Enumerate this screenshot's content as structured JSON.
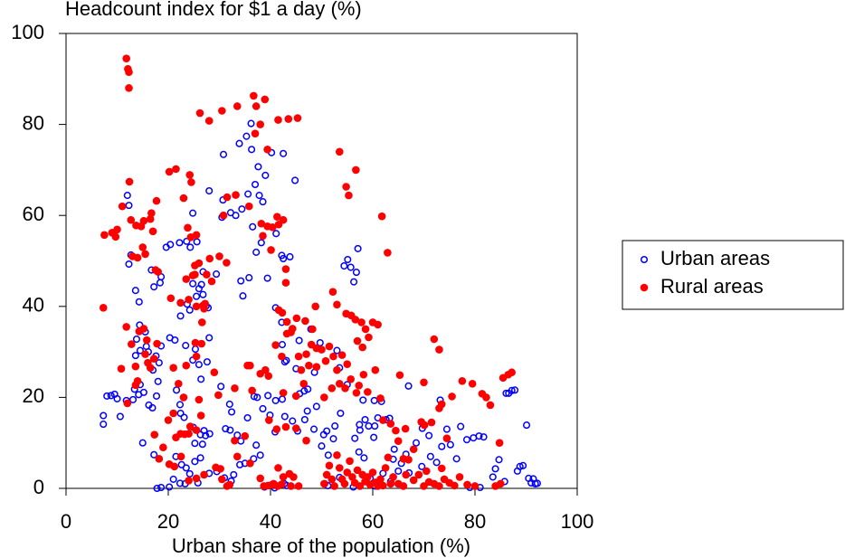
{
  "chart_data": {
    "type": "scatter",
    "ylabel": "Headcount index for $1 a day (%)",
    "xlabel": "Urban share of the population (%)",
    "xlim": [
      0,
      100
    ],
    "xticks": [
      0,
      20,
      40,
      60,
      80,
      100
    ],
    "ylim": [
      0,
      100
    ],
    "yticks": [
      0,
      20,
      40,
      60,
      80,
      100
    ],
    "legend": "right",
    "series": [
      {
        "name": "Urban areas",
        "color": "#0000ff",
        "marker": "open",
        "x": [
          12,
          12.3,
          12.7,
          12.3,
          13.6,
          14.3,
          14.4,
          15.5,
          15.7,
          13.8,
          14.5,
          16.1,
          17.6,
          17,
          18.2,
          18.6,
          17.2,
          18.4,
          18.6,
          16.7,
          13.6,
          7.3,
          7.3,
          8,
          8.8,
          9.5,
          10,
          10.6,
          11.8,
          13.1,
          13.4,
          14.2,
          14.5,
          15.2,
          16.2,
          16.9,
          17.7,
          18,
          15,
          17.2,
          17.8,
          18.6,
          20.2,
          19.6,
          20.4,
          22.2,
          23.6,
          24.8,
          24.3,
          25.6,
          28,
          26,
          26.5,
          26.8,
          25.5,
          24.2,
          23.7,
          24.8,
          26.8,
          29.4,
          27.4,
          27.8,
          27.6,
          20.3,
          21.3,
          22.4,
          23.4,
          25.3,
          28,
          26,
          24.8,
          26.4,
          21.6,
          22.3,
          22.4,
          23.1,
          24.9,
          26.3,
          27,
          27.3,
          28.1,
          26.7,
          25.2,
          26.3,
          25.2,
          23.5,
          22.6,
          21,
          21.5,
          22.3,
          23.3,
          24.2,
          25.8,
          28,
          29.5,
          31,
          32.3,
          32.8,
          34,
          35,
          36.7,
          37.2,
          38,
          38.8,
          40.8,
          42.7,
          43.2,
          30.8,
          33.9,
          35.3,
          36.2,
          37,
          37.6,
          36.3,
          40.2,
          42.5,
          44.8,
          39,
          30.7,
          30.5,
          32.2,
          33.2,
          34.4,
          35.6,
          37.8,
          38.5,
          36.5,
          38.2,
          37.2,
          39.4,
          41.1,
          42.2,
          42.5,
          43.8,
          34.2,
          35.8,
          34.6,
          30.3,
          32,
          32.4,
          31.2,
          32.1,
          33.5,
          34.2,
          35.5,
          36.8,
          37.4,
          38.5,
          39.5,
          39.9,
          40.9,
          41,
          42.3,
          42.8,
          44.3,
          45.3,
          45.7,
          46.6,
          47.2,
          48.5,
          48.6,
          45,
          42.8,
          43.1,
          42.2,
          41,
          42.3,
          45.6,
          47.9,
          49.7,
          47.3,
          46.7,
          49,
          50,
          50.4,
          51,
          52.3,
          51.3,
          50.6,
          51.2,
          52.6,
          53.7,
          53.5,
          55,
          53,
          54.4,
          55.1,
          55.7,
          56.3,
          56.8,
          57.1,
          56.5,
          57.4,
          58.5,
          58.1,
          57.5,
          59.2,
          60.3,
          61,
          61.7,
          62.6,
          63.3,
          64.2,
          60.2,
          57.3,
          58.3,
          59.5,
          60.5,
          62,
          63.5,
          65.6,
          66.5,
          67.1,
          68.5,
          69.7,
          71,
          69.6,
          71.3,
          72.5,
          73.5,
          74.5,
          75.2,
          76.4,
          77.2,
          78.4,
          79.7,
          80.8,
          81.7,
          79,
          81,
          83.5,
          84,
          84.7,
          85.8,
          86.1,
          86.6,
          87.2,
          87.8,
          88.3,
          88.8,
          89.4,
          90.1,
          90.5,
          91,
          91.4,
          91.8,
          92.2,
          67,
          73.2,
          60.4,
          64,
          65,
          56.2,
          53.5
        ],
        "values": [
          64.4,
          62.2,
          51.3,
          49.3,
          43.5,
          41,
          35.9,
          34.4,
          31.2,
          32.8,
          30.3,
          30,
          29.1,
          26,
          27.6,
          31.3,
          44.3,
          45.2,
          46.5,
          48,
          29.2,
          16,
          14.1,
          20.3,
          20.4,
          20.7,
          19.7,
          15.8,
          19.3,
          19.5,
          21.8,
          20.6,
          22.8,
          21.1,
          18.3,
          17.7,
          20.3,
          23.5,
          10,
          7.4,
          0,
          0.2,
          0.3,
          53,
          53.6,
          54,
          54.3,
          60.5,
          53,
          54.2,
          65.4,
          43.9,
          44.8,
          42.6,
          42.2,
          39.2,
          40.5,
          45,
          47.6,
          47.1,
          40.1,
          39.7,
          27.8,
          33.1,
          32.6,
          37.9,
          31.4,
          30.6,
          33.1,
          27.2,
          28.2,
          24,
          21.6,
          18.4,
          16.5,
          15.6,
          13.4,
          11.8,
          12.7,
          11.6,
          12,
          9.7,
          9.9,
          6.7,
          5.9,
          4.5,
          5.2,
          2,
          7,
          1.1,
          1,
          3.2,
          1.2,
          3.3,
          3.7,
          2.3,
          1.6,
          3,
          5.2,
          5.5,
          6.5,
          9.5,
          7.3,
          0.3,
          0.1,
          1,
          0.6,
          73.4,
          75.8,
          77.4,
          80.2,
          66.8,
          70.7,
          74.5,
          73.8,
          73.6,
          67.7,
          68.8,
          63.4,
          59.6,
          60.6,
          60,
          61.4,
          64.7,
          64.4,
          63,
          57.5,
          54,
          51.9,
          46.2,
          56,
          51.2,
          50.5,
          50.9,
          45.6,
          46.3,
          42.3,
          22.4,
          18.5,
          16.8,
          13.1,
          12.8,
          11.7,
          10.4,
          15.5,
          20.2,
          20,
          17.5,
          20.4,
          16.1,
          12.4,
          19.3,
          19.6,
          15.8,
          14.8,
          12.6,
          20.8,
          21.4,
          17,
          13,
          25.5,
          26.3,
          27.8,
          28.1,
          36.5,
          39.7,
          31.6,
          32.5,
          35,
          32,
          21.8,
          15.1,
          18,
          9.3,
          11.8,
          12.6,
          10.9,
          7.3,
          1,
          0.6,
          13.7,
          16.5,
          26.5,
          22.8,
          30.3,
          48.9,
          50.3,
          48.6,
          45.4,
          47.5,
          52.7,
          11,
          14,
          15.1,
          19.4,
          12.8,
          13.7,
          19.3,
          15.5,
          19.1,
          15.1,
          15.4,
          8.6,
          11.2,
          8,
          6.7,
          2.2,
          0.5,
          3.3,
          1.5,
          5.5,
          7.5,
          3.4,
          10,
          13.2,
          11.6,
          4.8,
          7,
          5.7,
          9.2,
          13,
          9.6,
          6.5,
          13.6,
          10.7,
          11.1,
          11.5,
          11.3,
          0.2,
          0.2,
          2.5,
          4.3,
          6.3,
          1.5,
          20.9,
          20.9,
          21.5,
          21.6,
          3.8,
          4.8,
          5,
          13.9,
          2.2,
          1.2,
          2.1,
          1,
          1.1,
          22.5,
          19.4,
          13.7,
          6.4,
          3.8,
          0.3,
          2.4
        ]
      },
      {
        "name": "Rural areas",
        "color": "#ff0000",
        "marker": "filled",
        "x": [
          11.8,
          12.1,
          12.3,
          12.3,
          7.3,
          7.5,
          9,
          9.7,
          10,
          11,
          12.4,
          12.7,
          13.7,
          14.7,
          15.2,
          16.5,
          16.7,
          17,
          17.7,
          17.5,
          18,
          14,
          15,
          15.5,
          13,
          11.8,
          12.8,
          13.6,
          14,
          14.3,
          15.2,
          15.5,
          16,
          16.5,
          17.2,
          17.8,
          13.6,
          12,
          10.8,
          15.8,
          17.3,
          18.2,
          19,
          20.2,
          21.5,
          23,
          24.2,
          24.5,
          23.8,
          24.4,
          25.5,
          25.2,
          24.8,
          23.5,
          26,
          25.2,
          20.5,
          22.4,
          24,
          25.5,
          26.6,
          26.8,
          27,
          28.1,
          28.5,
          27.5,
          27.2,
          26.2,
          28,
          30.5,
          33.5,
          36.7,
          37.2,
          38,
          37,
          38.9,
          31.5,
          30.8,
          33.2,
          35.8,
          39.4,
          30,
          31.4,
          38.2,
          39.4,
          40.4,
          41.3,
          41.6,
          38.5,
          40.1,
          21,
          22,
          23.5,
          25.5,
          23,
          24.3,
          21.5,
          22.4,
          24,
          25.5,
          26.4,
          26,
          29,
          29.8,
          33,
          35.5,
          36,
          20.2,
          21.2,
          22.5,
          23.2,
          20,
          21,
          24,
          25.5,
          27,
          26.5,
          25.3,
          29.3,
          30.2,
          30.5,
          31.5,
          32,
          33,
          33.5,
          35,
          36,
          38,
          38.7,
          39.5,
          40.3,
          40.6,
          41.4,
          42.2,
          44,
          41.5,
          43.5,
          45.3,
          42.5,
          41.6,
          42.3,
          43.2,
          44.3,
          45.1,
          46.8,
          48.2,
          48.8,
          41,
          42.2,
          43.2,
          44,
          45.5,
          46,
          47,
          48,
          49,
          50,
          51.5,
          50.8,
          47.5,
          43,
          43,
          38,
          39,
          39.6,
          36.4,
          42.5,
          45,
          46.5,
          49,
          50.5,
          52,
          53.5,
          41.2,
          43,
          45,
          47,
          39.7,
          41.5,
          43.7,
          44.5,
          42.5,
          45.5,
          53.5,
          54.8,
          55.3,
          56.7,
          52.2,
          53,
          54.8,
          55.8,
          56.6,
          57.8,
          58.6,
          59.2,
          60,
          61,
          61.8,
          62.9,
          57,
          58,
          54,
          55,
          55.7,
          57.3,
          58.2,
          59,
          60.5,
          52.3,
          53,
          54.6,
          56.8,
          50.5,
          51,
          51.5,
          52,
          52.5,
          53,
          53.5,
          54,
          54.5,
          55,
          55.5,
          56,
          56.5,
          57,
          57.5,
          58,
          58.5,
          59,
          59.5,
          60,
          60.5,
          61,
          61.5,
          62,
          62.5,
          63,
          63.5,
          64,
          65,
          66,
          66.5,
          67,
          68,
          69,
          70,
          70.5,
          71,
          72,
          73,
          73.5,
          74,
          75,
          76,
          77,
          78.5,
          80,
          84,
          85,
          64.5,
          66.4,
          70.1,
          68,
          69.5,
          71.5,
          73,
          73.5,
          74.5,
          72,
          73,
          75.5,
          77.5,
          79.5,
          81.4,
          82.2,
          83,
          84.8,
          85.5,
          86.5,
          87.2,
          70,
          65.3,
          61.5,
          62,
          65,
          66,
          63.5
        ],
        "values": [
          94.5,
          92.2,
          91.5,
          88,
          39.7,
          55.7,
          56.2,
          55.3,
          56.9,
          62,
          67.4,
          59,
          57.8,
          57.6,
          58.8,
          59.2,
          60.5,
          56.5,
          63.2,
          48,
          47.6,
          50.7,
          53,
          51.5,
          51,
          35.5,
          31.7,
          26.8,
          23.6,
          34.5,
          35.1,
          29.5,
          27.6,
          26.5,
          28.5,
          31.8,
          22.7,
          18.7,
          26.3,
          32.6,
          11.8,
          6.5,
          9,
          69.6,
          70.2,
          63.8,
          68.9,
          67.3,
          57.3,
          55.2,
          55.7,
          47,
          46.8,
          46,
          49.5,
          49,
          41.8,
          40.8,
          41.5,
          40,
          36.5,
          40.2,
          39.5,
          50.5,
          45.5,
          47,
          40.6,
          82.5,
          80.8,
          83,
          84,
          86.3,
          84,
          80,
          78,
          85.5,
          64,
          60,
          64.5,
          62,
          74.5,
          51,
          49.6,
          58.2,
          57.6,
          57.4,
          59.7,
          58,
          55.5,
          52.4,
          26.5,
          23,
          27,
          29,
          20,
          13.6,
          11.2,
          12,
          12,
          12.8,
          16,
          19.5,
          25.5,
          20.5,
          22,
          27,
          27,
          5.3,
          4.8,
          7,
          11.9,
          15,
          16.5,
          1.7,
          2.2,
          3,
          31.8,
          32,
          4.6,
          4.3,
          2,
          0.5,
          0.8,
          10.5,
          7,
          11.5,
          5.5,
          2.2,
          0.5,
          0.6,
          0.8,
          1,
          0.5,
          0.9,
          0.5,
          81,
          81.2,
          81.4,
          59,
          39.2,
          38.6,
          36.6,
          35.1,
          37.4,
          36.8,
          35,
          40,
          31.5,
          29,
          34,
          34.3,
          29,
          26,
          29.5,
          31.6,
          30.8,
          30.5,
          31.2,
          28,
          27,
          48.2,
          45.2,
          25.2,
          26,
          24.7,
          21.5,
          21,
          20.3,
          23,
          26.7,
          20,
          22,
          23,
          13,
          13.5,
          13.2,
          10.5,
          15,
          4.5,
          3.2,
          2.5,
          2.5,
          0.5,
          74,
          66.3,
          64.4,
          70,
          43.2,
          40.4,
          38.4,
          38,
          37.1,
          36.5,
          35,
          33.2,
          36.5,
          36,
          59.8,
          51.8,
          32.4,
          31,
          29.3,
          27.3,
          24,
          22.6,
          25,
          21.2,
          26,
          29,
          26,
          22,
          21,
          1,
          3,
          5,
          2,
          0.5,
          7.3,
          4.5,
          2,
          1,
          3.5,
          6,
          2.5,
          1.2,
          4,
          0.5,
          3,
          1.5,
          2.5,
          0.8,
          3.5,
          1.3,
          0.5,
          2,
          0.6,
          4.5,
          6.8,
          1,
          2.5,
          1,
          0.5,
          3,
          6.3,
          1.8,
          3,
          0.5,
          3.8,
          1.4,
          1,
          0.5,
          4.4,
          2,
          1.2,
          0.6,
          2.5,
          0.8,
          0.5,
          0.5,
          1,
          12.7,
          13.1,
          13.9,
          8.6,
          14.6,
          14.5,
          17.6,
          18.5,
          11,
          32.8,
          30.5,
          20.2,
          23.6,
          23,
          20.8,
          20,
          18.3,
          10,
          24.3,
          25,
          25.5,
          23.3,
          24.9,
          19.8,
          15,
          10.4,
          6.5,
          14.2
        ]
      }
    ]
  }
}
